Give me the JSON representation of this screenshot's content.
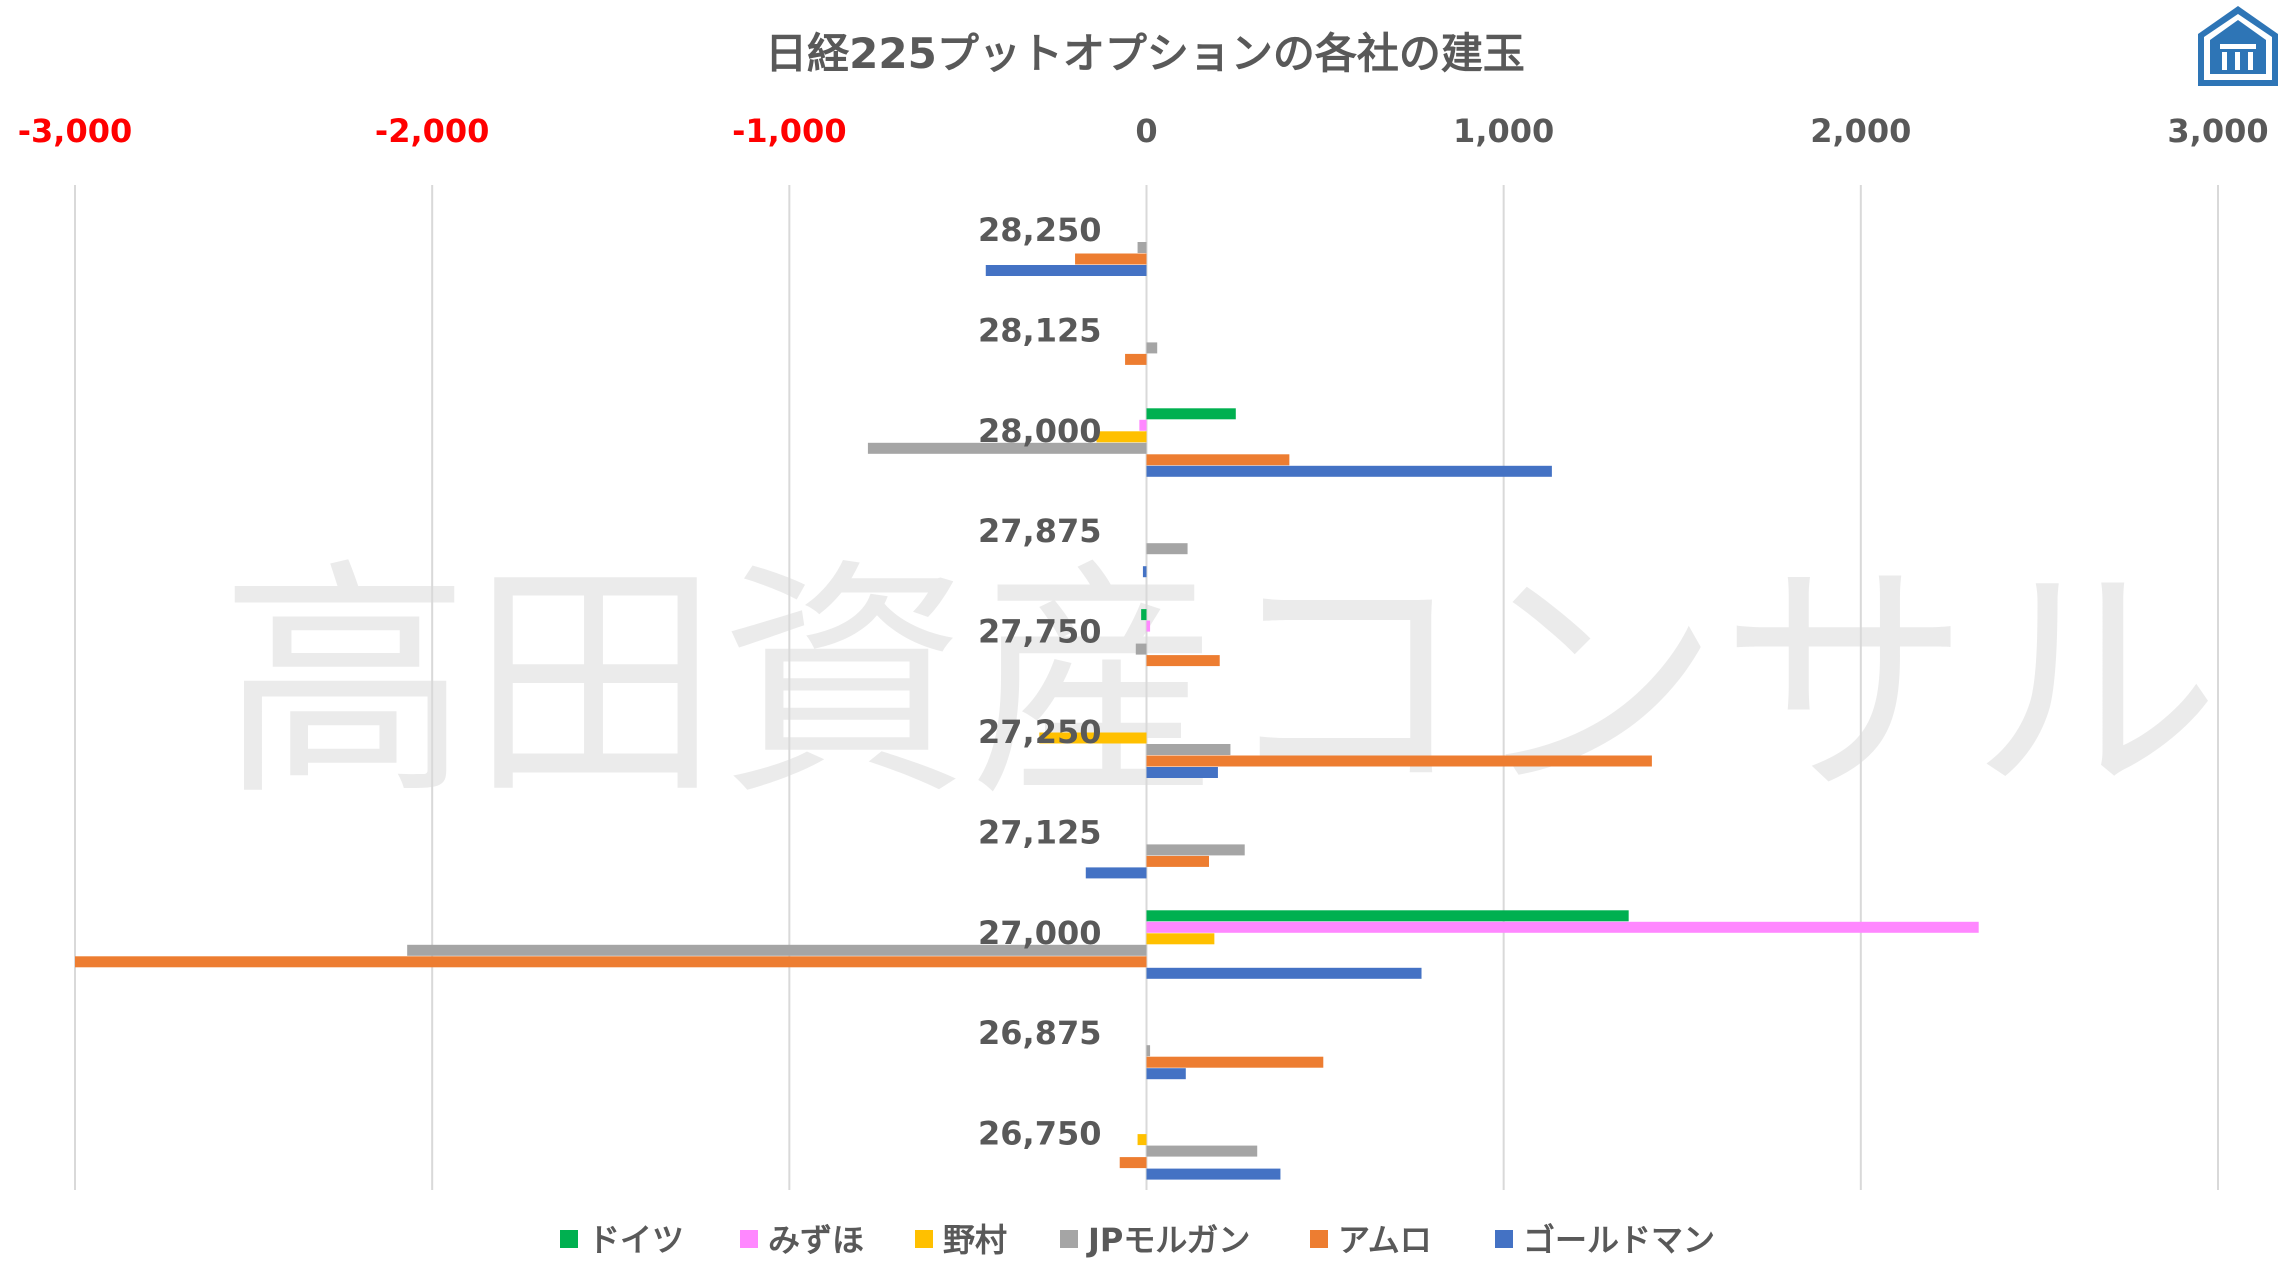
{
  "watermark": "高田資産コンサル",
  "chart_data": {
    "type": "bar",
    "orientation": "horizontal",
    "title": "日経225プットオプションの各社の建玉",
    "xlim": [
      -3000,
      3000
    ],
    "x_ticks": [
      -3000,
      -2000,
      -1000,
      0,
      1000,
      2000,
      3000
    ],
    "x_tick_labels": [
      "-3,000",
      "-2,000",
      "-1,000",
      "0",
      "1,000",
      "2,000",
      "3,000"
    ],
    "negative_tick_color": "#ff0000",
    "grid": "vertical",
    "legend_position": "bottom",
    "categories": [
      "28,250",
      "28,125",
      "28,000",
      "27,875",
      "27,750",
      "27,250",
      "27,125",
      "27,000",
      "26,875",
      "26,750"
    ],
    "series": [
      {
        "name": "ドイツ",
        "color": "#00b050",
        "values": [
          0,
          0,
          250,
          0,
          -15,
          0,
          0,
          1350,
          0,
          0
        ]
      },
      {
        "name": "みずほ",
        "color": "#ff88ff",
        "values": [
          0,
          0,
          -20,
          0,
          10,
          0,
          0,
          2330,
          0,
          0
        ]
      },
      {
        "name": "野村",
        "color": "#ffc000",
        "values": [
          0,
          0,
          -140,
          0,
          0,
          -300,
          0,
          190,
          0,
          -25
        ]
      },
      {
        "name": "JPモルガン",
        "color": "#a5a5a5",
        "values": [
          -25,
          30,
          -780,
          115,
          -30,
          235,
          275,
          -2070,
          10,
          310
        ]
      },
      {
        "name": "アムロ",
        "color": "#ed7d31",
        "values": [
          -200,
          -60,
          400,
          0,
          205,
          1415,
          175,
          -3000,
          495,
          -75
        ]
      },
      {
        "name": "ゴールドマン",
        "color": "#4472c4",
        "values": [
          -450,
          0,
          1135,
          -10,
          0,
          200,
          -170,
          770,
          110,
          375
        ]
      }
    ]
  }
}
